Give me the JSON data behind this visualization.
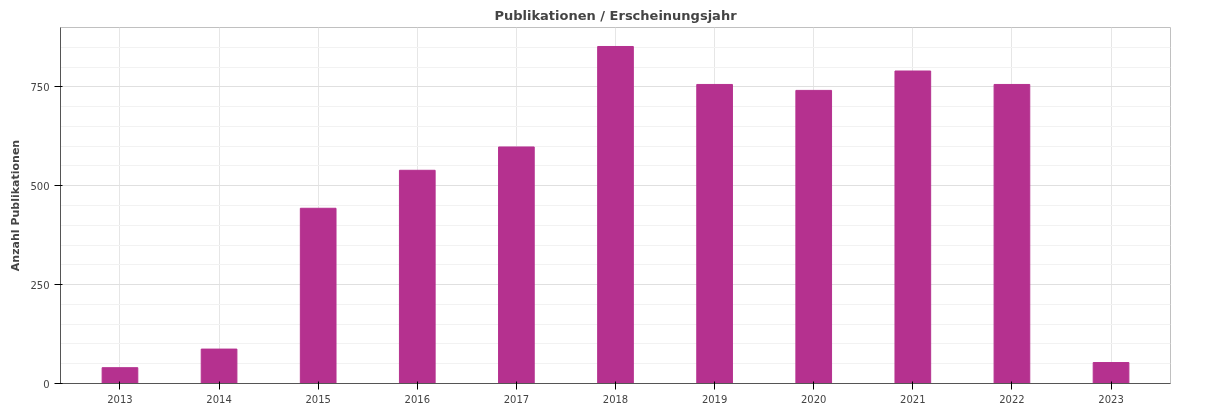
{
  "chart_data": {
    "type": "bar",
    "title": "Publikationen / Erscheinungsjahr",
    "ylabel": "Anzahl Publikationen",
    "categories": [
      "2013",
      "2014",
      "2015",
      "2016",
      "2017",
      "2018",
      "2019",
      "2020",
      "2021",
      "2022",
      "2023"
    ],
    "values": [
      40,
      87,
      443,
      539,
      598,
      852,
      756,
      741,
      790,
      756,
      53
    ],
    "color": "#b5318f",
    "ylim": [
      0,
      900
    ],
    "yticks": [
      0,
      250,
      500,
      750
    ],
    "grid": true
  }
}
